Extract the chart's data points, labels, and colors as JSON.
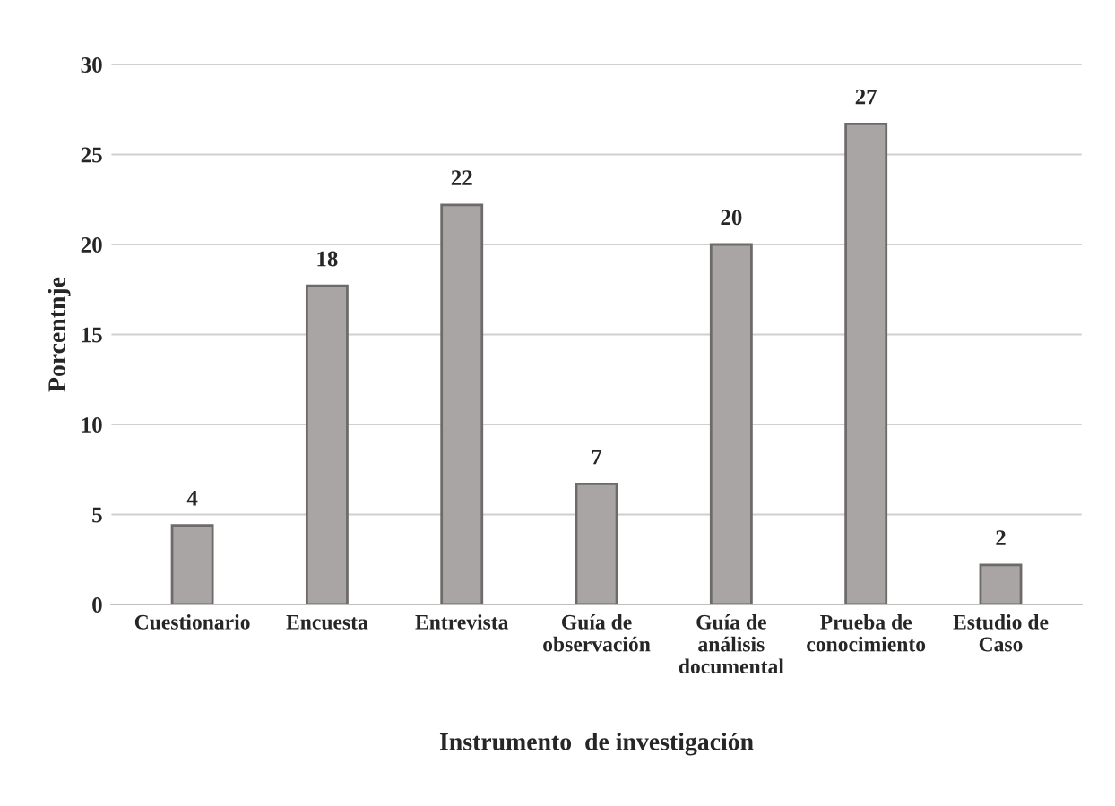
{
  "chart_data": {
    "type": "bar",
    "categories": [
      "Cuestionario",
      "Encuesta",
      "Entrevista",
      "Guía de\nobservación",
      "Guía de\nanálisis\ndocumental",
      "Prueba de\nconocimiento",
      "Estudio de\nCaso"
    ],
    "values": [
      4.4,
      17.7,
      22.2,
      6.7,
      20,
      26.7,
      2.2
    ],
    "value_labels": [
      "4",
      "18",
      "22",
      "7",
      "20",
      "27",
      "2"
    ],
    "color": "#aaa5a5",
    "xlabel": "Instrumento  de investigación",
    "ylabel": "Porcentnje",
    "ylim": [
      0,
      30
    ],
    "yticks": [
      0,
      5,
      10,
      15,
      20,
      25,
      30
    ],
    "grid": "y"
  }
}
